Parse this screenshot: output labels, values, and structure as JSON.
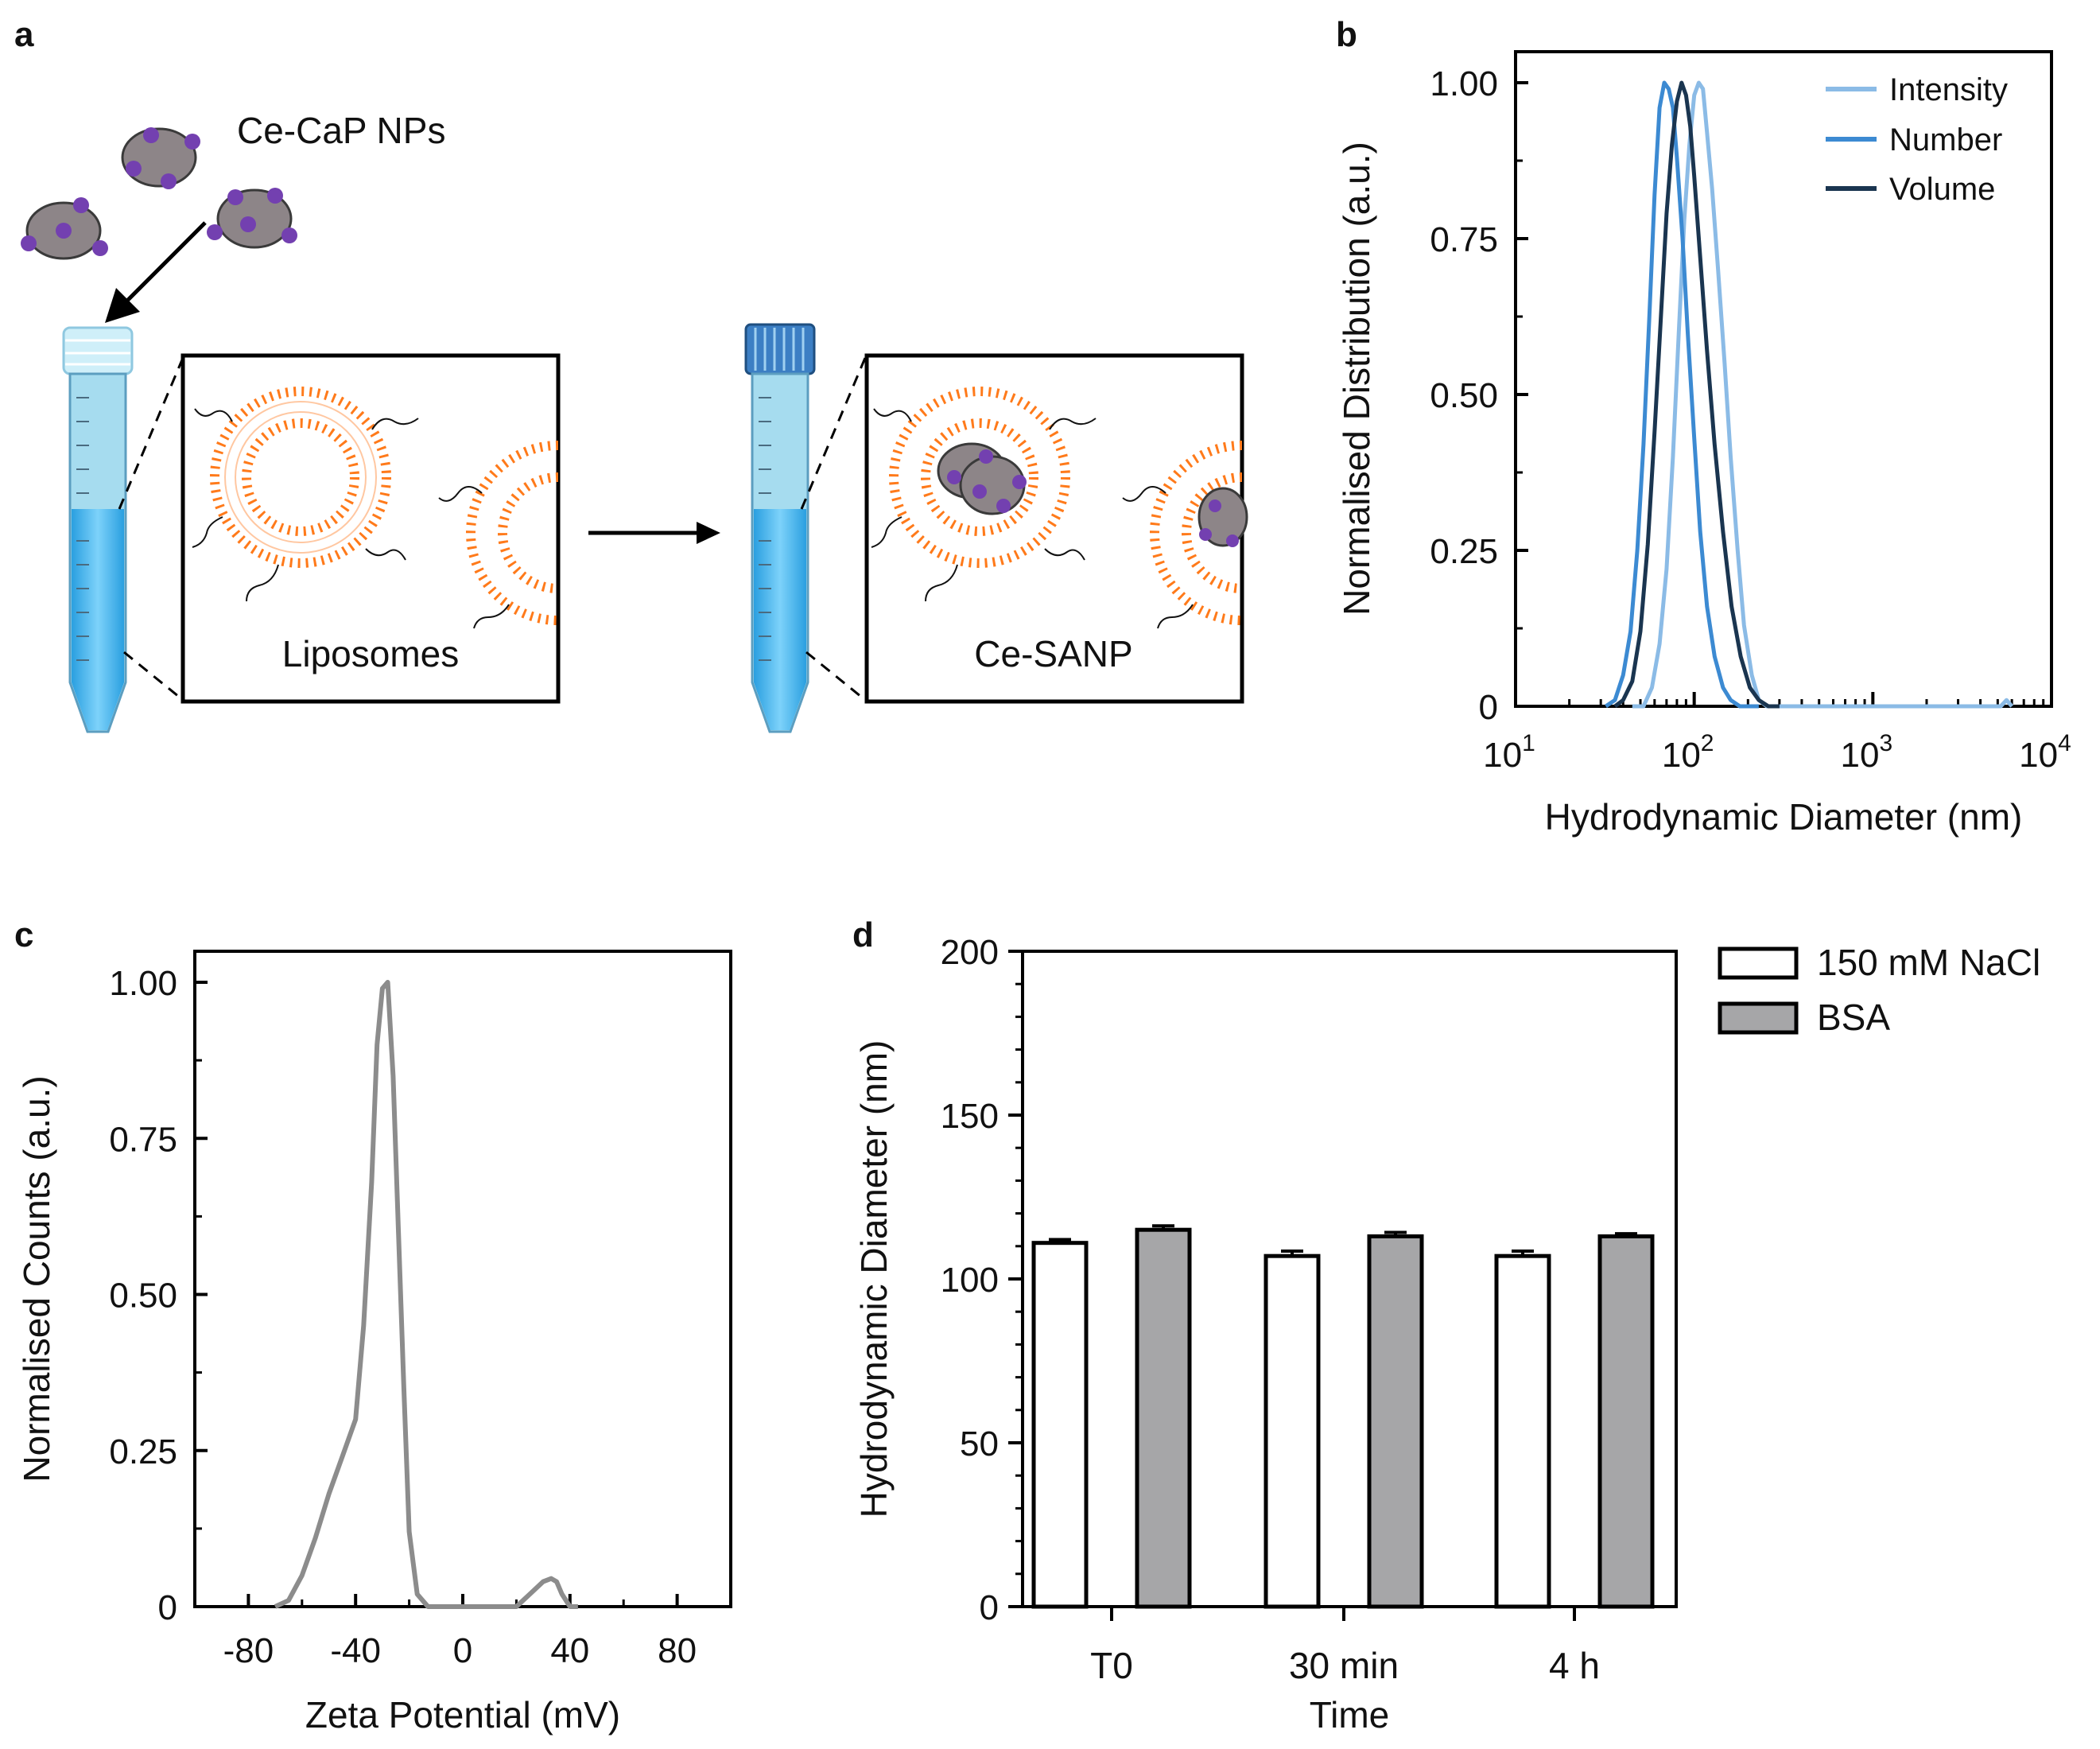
{
  "panel_labels": {
    "a": "a",
    "b": "b",
    "c": "c",
    "d": "d"
  },
  "schematic": {
    "np_label": "Ce-CaP NPs",
    "box1_label": "Liposomes",
    "box2_label": "Ce-SANP"
  },
  "colors": {
    "intensity": "#8bbbe6",
    "number": "#3c8ad2",
    "volume": "#1a3550",
    "zeta": "#8c8c8c",
    "bar_white": "#ffffff",
    "bar_grey": "#a6a6a8",
    "lipid": "#ff7a1a",
    "np": "#8d8588",
    "np_dot": "#7340b0",
    "tube_liquid": "#61c3f4"
  },
  "chart_data": [
    {
      "panel": "b",
      "type": "line",
      "xscale": "log",
      "xlim": [
        10,
        10000
      ],
      "ylim": [
        0,
        1
      ],
      "xticks": [
        "10^1",
        "10^2",
        "10^3",
        "10^4"
      ],
      "xtick_base": [
        "10",
        "10",
        "10",
        "10"
      ],
      "xtick_exp": [
        "1",
        "2",
        "3",
        "4"
      ],
      "yticks": [
        "0",
        "0.25",
        "0.50",
        "0.75",
        "1.00"
      ],
      "xlabel": "Hydrodynamic Diameter (nm)",
      "ylabel": "Normalised Distribution (a.u.)",
      "legend_position": "top-right",
      "series": [
        {
          "name": "Intensity",
          "x": [
            45,
            52,
            58,
            64,
            70,
            76,
            82,
            88,
            94,
            100,
            106,
            112,
            118,
            126,
            136,
            148,
            160,
            175,
            190,
            210,
            230,
            255,
            280,
            310,
            5200,
            5600,
            6000
          ],
          "y": [
            0,
            0,
            0.03,
            0.1,
            0.22,
            0.4,
            0.6,
            0.78,
            0.9,
            0.98,
            1.0,
            0.99,
            0.92,
            0.83,
            0.7,
            0.55,
            0.4,
            0.25,
            0.13,
            0.05,
            0.01,
            0,
            0,
            0,
            0,
            0.01,
            0
          ]
        },
        {
          "name": "Number",
          "x": [
            32,
            36,
            40,
            44,
            48,
            52,
            56,
            60,
            64,
            68,
            72,
            76,
            80,
            86,
            92,
            100,
            108,
            118,
            130,
            145,
            160,
            180,
            200,
            230
          ],
          "y": [
            0,
            0.01,
            0.05,
            0.12,
            0.25,
            0.42,
            0.62,
            0.82,
            0.96,
            1.0,
            0.99,
            0.96,
            0.88,
            0.75,
            0.6,
            0.43,
            0.28,
            0.16,
            0.08,
            0.03,
            0.01,
            0,
            0,
            0
          ]
        },
        {
          "name": "Volume",
          "x": [
            36,
            40,
            45,
            50,
            55,
            60,
            65,
            70,
            75,
            80,
            85,
            90,
            95,
            100,
            108,
            118,
            130,
            145,
            162,
            182,
            205,
            230,
            260,
            300
          ],
          "y": [
            0,
            0.01,
            0.04,
            0.12,
            0.26,
            0.44,
            0.62,
            0.79,
            0.9,
            0.97,
            1.0,
            0.98,
            0.93,
            0.85,
            0.72,
            0.57,
            0.42,
            0.28,
            0.16,
            0.08,
            0.03,
            0.01,
            0,
            0
          ]
        }
      ]
    },
    {
      "panel": "c",
      "type": "line",
      "xlim": [
        -100,
        100
      ],
      "ylim": [
        0,
        1
      ],
      "xticks": [
        "-80",
        "-40",
        "0",
        "40",
        "80"
      ],
      "yticks": [
        "0",
        "0.25",
        "0.50",
        "0.75",
        "1.00"
      ],
      "xlabel": "Zeta Potential (mV)",
      "ylabel": "Normalised Counts (a.u.)",
      "series": [
        {
          "name": "Zeta",
          "x": [
            -70,
            -65,
            -60,
            -55,
            -50,
            -45,
            -40,
            -37,
            -34,
            -32,
            -30,
            -28,
            -26,
            -24,
            -22,
            -20,
            -17,
            -13,
            -10,
            -5,
            0,
            5,
            10,
            15,
            20,
            25,
            30,
            33,
            35,
            37,
            40,
            43
          ],
          "y": [
            0,
            0.01,
            0.05,
            0.11,
            0.18,
            0.24,
            0.3,
            0.45,
            0.68,
            0.9,
            0.99,
            1.0,
            0.85,
            0.6,
            0.35,
            0.12,
            0.02,
            0,
            0,
            0,
            0,
            0,
            0,
            0,
            0,
            0.02,
            0.04,
            0.045,
            0.04,
            0.02,
            0,
            0
          ]
        }
      ]
    },
    {
      "panel": "d",
      "type": "bar",
      "categories": [
        "T0",
        "30 min",
        "4 h"
      ],
      "ylim": [
        0,
        200
      ],
      "yticks": [
        "0",
        "50",
        "100",
        "150",
        "200"
      ],
      "xlabel": "Time",
      "ylabel": "Hydrodynamic Diameter (nm)",
      "legend_position": "outside-right",
      "series": [
        {
          "name": "150 mM NaCl",
          "values": [
            111,
            107,
            107
          ],
          "errors": [
            1,
            1.5,
            1.5
          ]
        },
        {
          "name": "BSA",
          "values": [
            115,
            113,
            113
          ],
          "errors": [
            1.2,
            1.2,
            0.8
          ]
        }
      ]
    }
  ]
}
